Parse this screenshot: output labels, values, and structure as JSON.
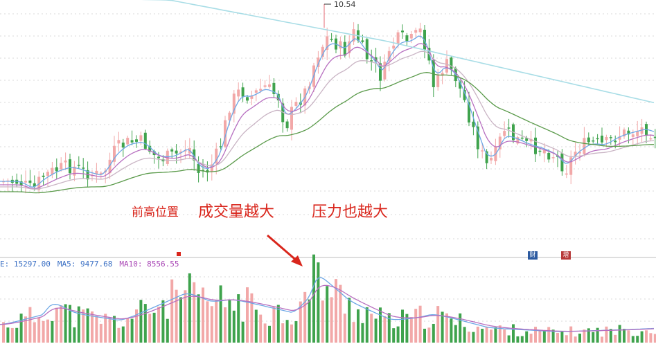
{
  "chart_data": {
    "type": "candlestick",
    "price_panel": {
      "high_label": "10.54",
      "annotations": {
        "position": "前高位置",
        "volume": "成交量越大",
        "pressure": "压力也越大"
      }
    },
    "volume_panel": {
      "legend": {
        "vol": "E: 15297.00",
        "ma5": "MA5: 9477.68",
        "ma10": "MA10: 8556.55"
      },
      "tags": [
        "财",
        "增"
      ]
    },
    "colors": {
      "up": "#f2a8a8",
      "up_strong": "#e8828a",
      "down": "#3fa34d",
      "ma_short": "#6da7e6",
      "ma_mid": "#b76fc0",
      "ma_long": "#c9b4c4",
      "ma_120": "#5a9a4a",
      "ma_250": "#a8dde6",
      "annotation": "#d9261c",
      "grid": "#d8d8d8",
      "tag_blue": "#2c5aa0",
      "tag_red": "#b73a3a"
    }
  }
}
